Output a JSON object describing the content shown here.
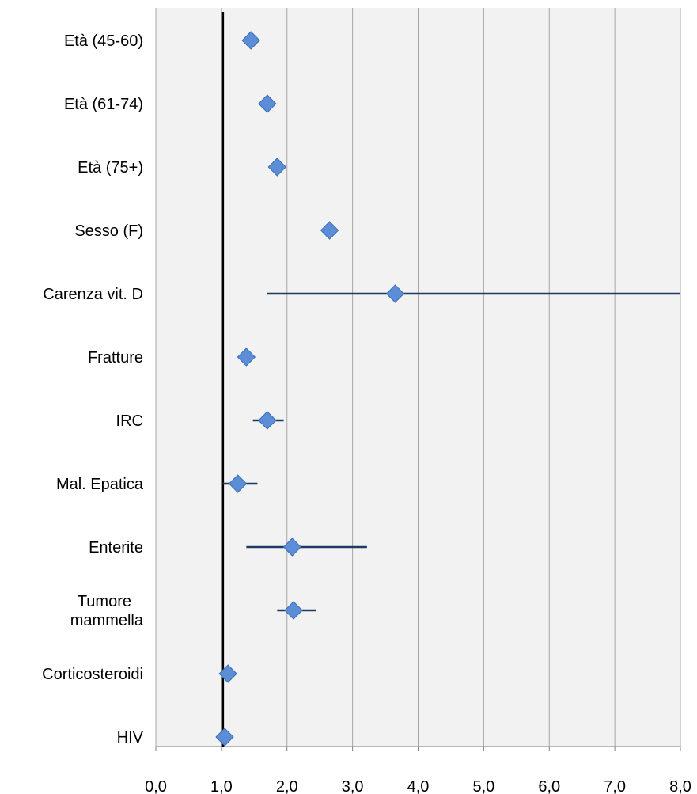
{
  "chart_data": {
    "type": "scatter",
    "subtype": "forest-plot",
    "title": "",
    "xlabel": "",
    "ylabel": "",
    "xlim": [
      0,
      8
    ],
    "xticks": [
      "0,0",
      "1,0",
      "2,0",
      "3,0",
      "4,0",
      "5,0",
      "6,0",
      "7,0",
      "8,0"
    ],
    "reference_line": 1.0,
    "grid": "vertical",
    "legend": "none",
    "colors": {
      "plot_background": "#f2f2f2",
      "grid": "#a6a6a6",
      "marker": "#5b8ed6",
      "marker_edge": "#3a6fb5",
      "error_bar": "#1f3864",
      "reference_line": "#000000"
    },
    "categories": [
      {
        "label": [
          "Età (45-60)"
        ],
        "value": 1.45,
        "lower": null,
        "upper": null
      },
      {
        "label": [
          "Età (61-74)"
        ],
        "value": 1.7,
        "lower": null,
        "upper": null
      },
      {
        "label": [
          "Età (75+)"
        ],
        "value": 1.85,
        "lower": null,
        "upper": null
      },
      {
        "label": [
          "Sesso (F)"
        ],
        "value": 2.65,
        "lower": null,
        "upper": null
      },
      {
        "label": [
          "Carenza vit. D"
        ],
        "value": 3.65,
        "lower": 1.7,
        "upper": 8.0
      },
      {
        "label": [
          "Fratture"
        ],
        "value": 1.38,
        "lower": null,
        "upper": null
      },
      {
        "label": [
          "IRC"
        ],
        "value": 1.7,
        "lower": 1.48,
        "upper": 1.95
      },
      {
        "label": [
          "Mal. Epatica"
        ],
        "value": 1.25,
        "lower": 1.02,
        "upper": 1.55
      },
      {
        "label": [
          "Enterite"
        ],
        "value": 2.08,
        "lower": 1.38,
        "upper": 3.22
      },
      {
        "label": [
          "Tumore",
          "mammella"
        ],
        "value": 2.1,
        "lower": 1.85,
        "upper": 2.45
      },
      {
        "label": [
          "Corticosteroidi"
        ],
        "value": 1.1,
        "lower": 0.98,
        "upper": 1.15
      },
      {
        "label": [
          "HIV"
        ],
        "value": 1.05,
        "lower": 0.97,
        "upper": 1.12
      }
    ]
  }
}
